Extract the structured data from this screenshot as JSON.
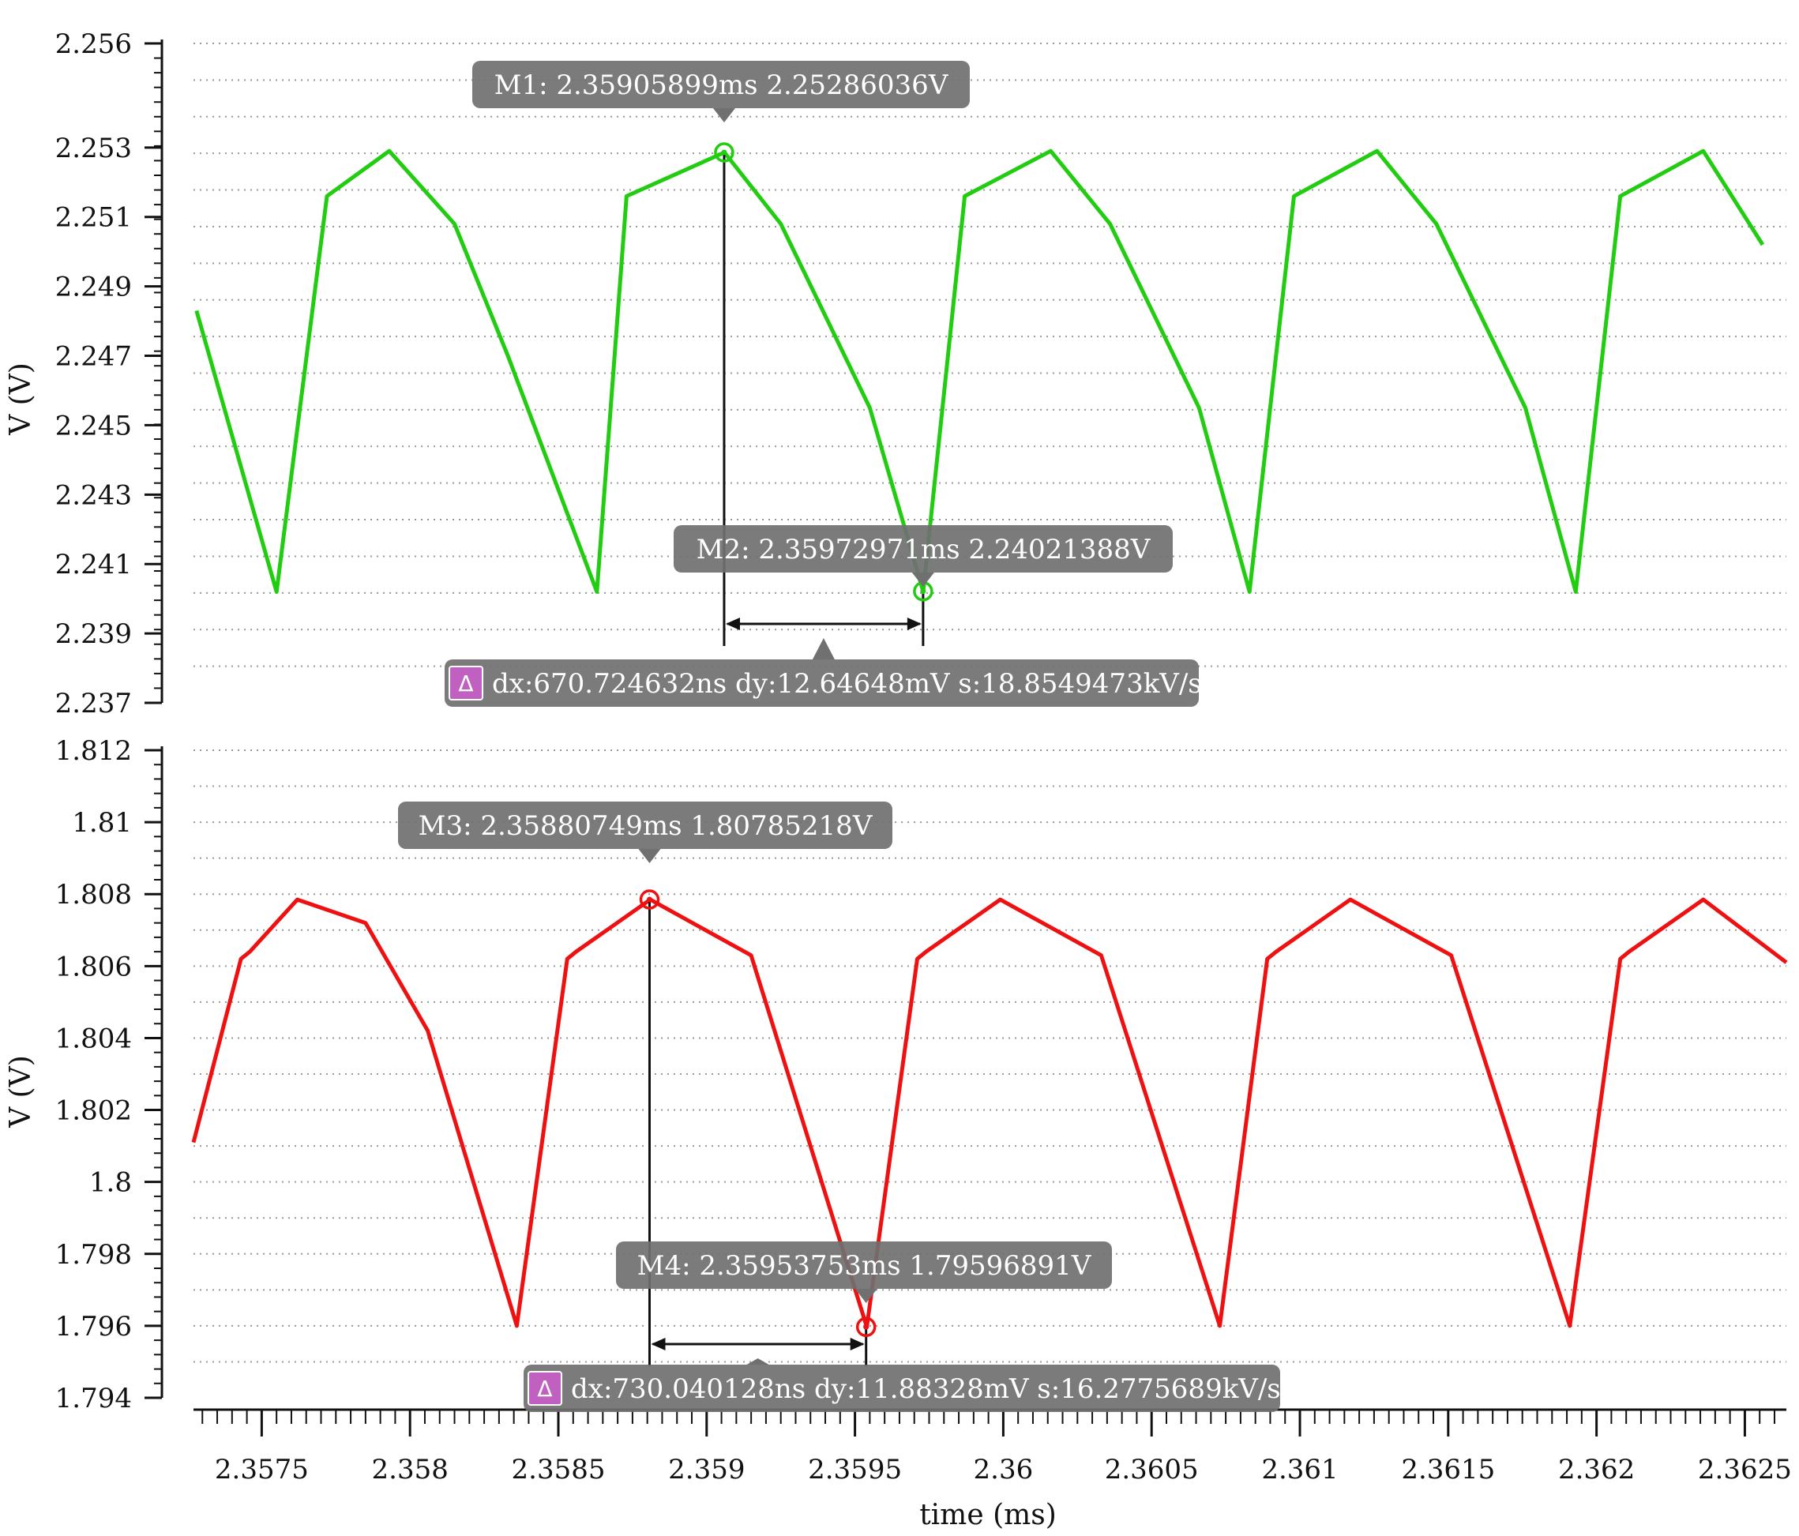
{
  "chart_data": [
    {
      "type": "line",
      "ylabel": "V (V)",
      "ylim": [
        2.237,
        2.256
      ],
      "yticks": [
        "2.256",
        "2.253",
        "2.251",
        "2.249",
        "2.247",
        "2.245",
        "2.243",
        "2.241",
        "2.239",
        "2.237"
      ],
      "grid": true,
      "series": [
        {
          "color": "#22cc11",
          "x": [
            2.35728,
            2.35755,
            2.35772,
            2.35793,
            2.35815,
            2.35833,
            2.35863,
            2.35873,
            2.35906,
            2.35925,
            2.35955,
            2.35973,
            2.35987,
            2.36016,
            2.36036,
            2.36066,
            2.36083,
            2.36098,
            2.36126,
            2.36146,
            2.36176,
            2.36193,
            2.36208,
            2.36236,
            2.36256
          ],
          "y": [
            2.2483,
            2.2402,
            2.2516,
            2.2529,
            2.2508,
            2.247,
            2.2402,
            2.2516,
            2.25286,
            2.2508,
            2.2455,
            2.24021,
            2.2516,
            2.2529,
            2.2508,
            2.2455,
            2.2402,
            2.2516,
            2.2529,
            2.2508,
            2.2455,
            2.2402,
            2.2516,
            2.2529,
            2.2502
          ]
        }
      ],
      "markers": [
        {
          "text": "M1: 2.35905899ms 2.25286036V",
          "x": 2.35905899,
          "y": 2.25286036
        },
        {
          "text": "M2: 2.35972971ms 2.24021388V",
          "x": 2.35972971,
          "y": 2.24021388
        }
      ],
      "delta": {
        "text": "dx:670.724632ns dy:12.64648mV s:18.8549473kV/s",
        "glyph": "Δ"
      }
    },
    {
      "type": "line",
      "ylabel": "V (V)",
      "ylim": [
        1.794,
        1.812
      ],
      "yticks": [
        "1.812",
        "1.81",
        "1.808",
        "1.806",
        "1.804",
        "1.802",
        "1.8",
        "1.798",
        "1.796",
        "1.794"
      ],
      "grid": true,
      "xlabel": "time (ms)",
      "xlim": [
        2.35727,
        2.36264
      ],
      "xticks": [
        "2.3575",
        "2.358",
        "2.3585",
        "2.359",
        "2.3595",
        "2.36",
        "2.3605",
        "2.361",
        "2.3615",
        "2.362",
        "2.3625"
      ],
      "series": [
        {
          "color": "#ee1111",
          "x": [
            2.35727,
            2.35743,
            2.35746,
            2.35762,
            2.35785,
            2.35806,
            2.35836,
            2.35853,
            2.35856,
            2.35881,
            2.35915,
            2.35954,
            2.35971,
            2.35974,
            2.35999,
            2.36033,
            2.36073,
            2.36089,
            2.36092,
            2.36117,
            2.36151,
            2.36191,
            2.36208,
            2.36211,
            2.36236,
            2.36264
          ],
          "y": [
            1.8011,
            1.8062,
            1.8064,
            1.80785,
            1.8072,
            1.8042,
            1.796,
            1.8062,
            1.8064,
            1.80785,
            1.8063,
            1.79597,
            1.8062,
            1.8064,
            1.80785,
            1.8063,
            1.796,
            1.8062,
            1.8064,
            1.80785,
            1.8063,
            1.796,
            1.8062,
            1.8064,
            1.80785,
            1.8061
          ]
        }
      ],
      "markers": [
        {
          "text": "M3: 2.35880749ms 1.80785218V",
          "x": 2.35880749,
          "y": 1.80785218
        },
        {
          "text": "M4: 2.35953753ms 1.79596891V",
          "x": 2.35953753,
          "y": 1.79596891
        }
      ],
      "delta": {
        "text": "dx:730.040128ns dy:11.88328mV s:16.2775689kV/s",
        "glyph": "Δ"
      }
    }
  ]
}
